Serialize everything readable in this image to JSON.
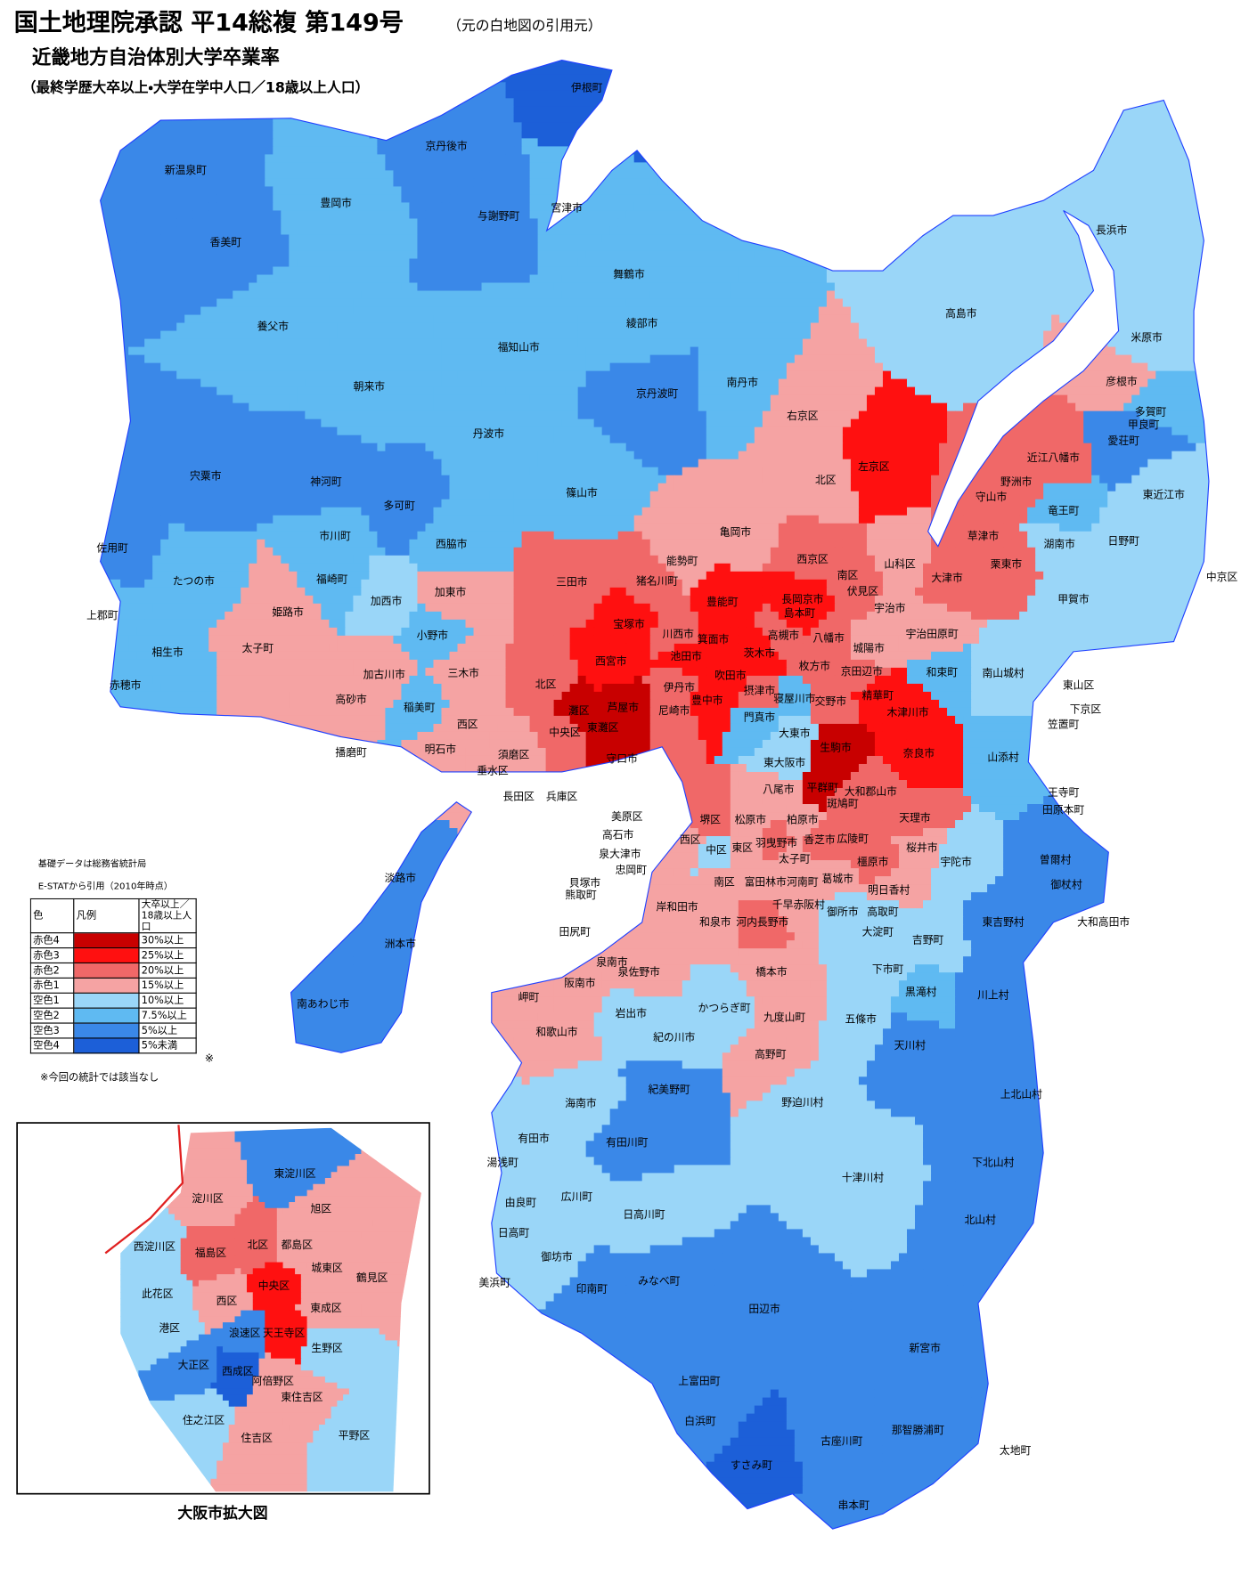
{
  "header": {
    "title": "国土地理院承認 平14総複 第149号",
    "source_note": "（元の白地図の引用元）",
    "subtitle": "近畿地方自治体別大学卒業率",
    "definition": "（最終学歴大卒以上・大学在学中人口／18歳以上人口）"
  },
  "legend": {
    "notes": [
      "基礎データは総務省統計局",
      "E-STATから引用（2010年時点）"
    ],
    "columns": [
      "色",
      "凡例",
      "大卒以上／18歳以上人口"
    ],
    "rows": [
      {
        "label": "赤色4",
        "color": "#c80000",
        "range": "30%以上"
      },
      {
        "label": "赤色3",
        "color": "#ff1010",
        "range": "25%以上"
      },
      {
        "label": "赤色2",
        "color": "#f06868",
        "range": "20%以上"
      },
      {
        "label": "赤色1",
        "color": "#f5a3a3",
        "range": "15%以上"
      },
      {
        "label": "空色1",
        "color": "#9ad6f8",
        "range": "10%以上"
      },
      {
        "label": "空色2",
        "color": "#5fbaf2",
        "range": "7.5%以上"
      },
      {
        "label": "空色3",
        "color": "#3a88e8",
        "range": "5%以上"
      },
      {
        "label": "空色4",
        "color": "#1c5fd8",
        "range": "5%未満"
      }
    ],
    "footnote_mark": "※",
    "footnote": "※今回の統計では該当なし"
  },
  "inset": {
    "title": "大阪市拡大図"
  },
  "places": [
    {
      "name": "伊根町",
      "color": "#1c5fd8"
    },
    {
      "name": "京丹後市",
      "color": "#3a88e8"
    },
    {
      "name": "新温泉町",
      "color": "#3a88e8"
    },
    {
      "name": "豊岡市",
      "color": "#5fbaf2"
    },
    {
      "name": "与謝野町",
      "color": "#3a88e8"
    },
    {
      "name": "宮津市",
      "color": "#5fbaf2"
    },
    {
      "name": "香美町",
      "color": "#3a88e8"
    },
    {
      "name": "舞鶴市",
      "color": "#5fbaf2"
    },
    {
      "name": "養父市",
      "color": "#5fbaf2"
    },
    {
      "name": "綾部市",
      "color": "#5fbaf2"
    },
    {
      "name": "福知山市",
      "color": "#5fbaf2"
    },
    {
      "name": "朝来市",
      "color": "#5fbaf2"
    },
    {
      "name": "南丹市",
      "color": "#5fbaf2"
    },
    {
      "name": "京丹波町",
      "color": "#3a88e8"
    },
    {
      "name": "丹波市",
      "color": "#5fbaf2"
    },
    {
      "name": "宍粟市",
      "color": "#3a88e8"
    },
    {
      "name": "神河町",
      "color": "#3a88e8"
    },
    {
      "name": "多可町",
      "color": "#3a88e8"
    },
    {
      "name": "篠山市",
      "color": "#5fbaf2"
    },
    {
      "name": "佐用町",
      "color": "#3a88e8"
    },
    {
      "name": "市川町",
      "color": "#5fbaf2"
    },
    {
      "name": "西脇市",
      "color": "#5fbaf2"
    },
    {
      "name": "たつの市",
      "color": "#5fbaf2"
    },
    {
      "name": "福崎町",
      "color": "#5fbaf2"
    },
    {
      "name": "加西市",
      "color": "#9ad6f8"
    },
    {
      "name": "上郡町",
      "color": "#5fbaf2"
    },
    {
      "name": "相生市",
      "color": "#5fbaf2"
    },
    {
      "name": "赤穂市",
      "color": "#5fbaf2"
    },
    {
      "name": "姫路市",
      "color": "#f5a3a3"
    },
    {
      "name": "太子町",
      "color": "#f5a3a3"
    },
    {
      "name": "加古川市",
      "color": "#f5a3a3"
    },
    {
      "name": "高砂市",
      "color": "#f5a3a3"
    },
    {
      "name": "稲美町",
      "color": "#5fbaf2"
    },
    {
      "name": "加東市",
      "color": "#f5a3a3"
    },
    {
      "name": "小野市",
      "color": "#5fbaf2"
    },
    {
      "name": "三木市",
      "color": "#f5a3a3"
    },
    {
      "name": "明石市",
      "color": "#f5a3a3"
    },
    {
      "name": "播磨町",
      "color": "#5fbaf2"
    },
    {
      "name": "西区",
      "color": "#f5a3a3"
    },
    {
      "name": "北区",
      "color": "#f06868"
    },
    {
      "name": "三田市",
      "color": "#f06868"
    },
    {
      "name": "猪名川町",
      "color": "#f06868"
    },
    {
      "name": "能勢町",
      "color": "#f5a3a3"
    },
    {
      "name": "亀岡市",
      "color": "#f5a3a3"
    },
    {
      "name": "右京区",
      "color": "#f5a3a3"
    },
    {
      "name": "北区",
      "color": "#f5a3a3"
    },
    {
      "name": "左京区",
      "color": "#ff1010"
    },
    {
      "name": "宝塚市",
      "color": "#ff1010"
    },
    {
      "name": "川西市",
      "color": "#f06868"
    },
    {
      "name": "豊能町",
      "color": "#ff1010"
    },
    {
      "name": "箕面市",
      "color": "#ff1010"
    },
    {
      "name": "池田市",
      "color": "#ff1010"
    },
    {
      "name": "茨木市",
      "color": "#ff1010"
    },
    {
      "name": "高槻市",
      "color": "#f06868"
    },
    {
      "name": "島本町",
      "color": "#ff1010"
    },
    {
      "name": "長岡京市",
      "color": "#ff1010"
    },
    {
      "name": "西宮市",
      "color": "#ff1010"
    },
    {
      "name": "伊丹市",
      "color": "#f06868"
    },
    {
      "name": "豊中市",
      "color": "#ff1010"
    },
    {
      "name": "吹田市",
      "color": "#ff1010"
    },
    {
      "name": "尼崎市",
      "color": "#f06868"
    },
    {
      "name": "芦屋市",
      "color": "#c80000"
    },
    {
      "name": "灘区",
      "color": "#c80000"
    },
    {
      "name": "東灘区",
      "color": "#c80000"
    },
    {
      "name": "中央区",
      "color": "#f06868"
    },
    {
      "name": "垂水区",
      "color": "#f5a3a3"
    },
    {
      "name": "須磨区",
      "color": "#f5a3a3"
    },
    {
      "name": "長田区",
      "color": "#9ad6f8"
    },
    {
      "name": "兵庫区",
      "color": "#9ad6f8"
    },
    {
      "name": "守口市",
      "color": "#9ad6f8"
    },
    {
      "name": "摂津市",
      "color": "#f06868"
    },
    {
      "name": "寝屋川市",
      "color": "#5fbaf2"
    },
    {
      "name": "交野市",
      "color": "#f06868"
    },
    {
      "name": "枚方市",
      "color": "#f06868"
    },
    {
      "name": "八幡市",
      "color": "#f06868"
    },
    {
      "name": "京田辺市",
      "color": "#f06868"
    },
    {
      "name": "城陽市",
      "color": "#f5a3a3"
    },
    {
      "name": "西京区",
      "color": "#f06868"
    },
    {
      "name": "南区",
      "color": "#f06868"
    },
    {
      "name": "伏見区",
      "color": "#f06868"
    },
    {
      "name": "山科区",
      "color": "#f5a3a3"
    },
    {
      "name": "宇治市",
      "color": "#f5a3a3"
    },
    {
      "name": "宇治田原町",
      "color": "#f5a3a3"
    },
    {
      "name": "精華町",
      "color": "#ff1010"
    },
    {
      "name": "木津川市",
      "color": "#ff1010"
    },
    {
      "name": "奈良市",
      "color": "#ff1010"
    },
    {
      "name": "生駒市",
      "color": "#c80000"
    },
    {
      "name": "門真市",
      "color": "#5fbaf2"
    },
    {
      "name": "大東市",
      "color": "#9ad6f8"
    },
    {
      "name": "東大阪市",
      "color": "#9ad6f8"
    },
    {
      "name": "平群町",
      "color": "#c80000"
    },
    {
      "name": "大和郡山市",
      "color": "#f06868"
    },
    {
      "name": "八尾市",
      "color": "#f5a3a3"
    },
    {
      "name": "柏原市",
      "color": "#f5a3a3"
    },
    {
      "name": "斑鳩町",
      "color": "#f06868"
    },
    {
      "name": "天理市",
      "color": "#f06868"
    },
    {
      "name": "桜井市",
      "color": "#f5a3a3"
    },
    {
      "name": "宇陀市",
      "color": "#9ad6f8"
    },
    {
      "name": "曽爾村",
      "color": "#3a88e8"
    },
    {
      "name": "御杖村",
      "color": "#3a88e8"
    },
    {
      "name": "和束町",
      "color": "#5fbaf2"
    },
    {
      "name": "南山城村",
      "color": "#9ad6f8"
    },
    {
      "name": "山添村",
      "color": "#5fbaf2"
    },
    {
      "name": "笠置町",
      "color": "#9ad6f8"
    },
    {
      "name": "王寺町",
      "color": "#f06868"
    },
    {
      "name": "田原本町",
      "color": "#f5a3a3"
    },
    {
      "name": "東山区",
      "color": "#f5a3a3"
    },
    {
      "name": "下京区",
      "color": "#f06868"
    },
    {
      "name": "中京区",
      "color": "#f06868"
    },
    {
      "name": "長浜市",
      "color": "#9ad6f8"
    },
    {
      "name": "米原市",
      "color": "#9ad6f8"
    },
    {
      "name": "高島市",
      "color": "#9ad6f8"
    },
    {
      "name": "彦根市",
      "color": "#f5a3a3"
    },
    {
      "name": "多賀町",
      "color": "#5fbaf2"
    },
    {
      "name": "甲良町",
      "color": "#3a88e8"
    },
    {
      "name": "愛荘町",
      "color": "#3a88e8"
    },
    {
      "name": "近江八幡市",
      "color": "#f06868"
    },
    {
      "name": "野洲市",
      "color": "#f06868"
    },
    {
      "name": "守山市",
      "color": "#f06868"
    },
    {
      "name": "竜王町",
      "color": "#5fbaf2"
    },
    {
      "name": "東近江市",
      "color": "#9ad6f8"
    },
    {
      "name": "草津市",
      "color": "#f06868"
    },
    {
      "name": "湖南市",
      "color": "#9ad6f8"
    },
    {
      "name": "日野町",
      "color": "#9ad6f8"
    },
    {
      "name": "栗東市",
      "color": "#f06868"
    },
    {
      "name": "大津市",
      "color": "#f06868"
    },
    {
      "name": "甲賀市",
      "color": "#9ad6f8"
    },
    {
      "name": "美原区",
      "color": "#f5a3a3"
    },
    {
      "name": "高石市",
      "color": "#f5a3a3"
    },
    {
      "name": "泉大津市",
      "color": "#f5a3a3"
    },
    {
      "name": "忠岡町",
      "color": "#f5a3a3"
    },
    {
      "name": "貝塚市",
      "color": "#9ad6f8"
    },
    {
      "name": "熊取町",
      "color": "#9ad6f8"
    },
    {
      "name": "田尻町",
      "color": "#9ad6f8"
    },
    {
      "name": "堺区",
      "color": "#f06868"
    },
    {
      "name": "松原市",
      "color": "#f5a3a3"
    },
    {
      "name": "東区",
      "color": "#f5a3a3"
    },
    {
      "name": "中区",
      "color": "#9ad6f8"
    },
    {
      "name": "西区",
      "color": "#f5a3a3"
    },
    {
      "name": "羽曳野市",
      "color": "#f06868"
    },
    {
      "name": "香芝市",
      "color": "#f06868"
    },
    {
      "name": "広陵町",
      "color": "#f06868"
    },
    {
      "name": "太子町",
      "color": "#f5a3a3"
    },
    {
      "name": "河南町",
      "color": "#f5a3a3"
    },
    {
      "name": "千早赤阪村",
      "color": "#f5a3a3"
    },
    {
      "name": "富田林市",
      "color": "#f5a3a3"
    },
    {
      "name": "葛城市",
      "color": "#f5a3a3"
    },
    {
      "name": "大和高田市",
      "color": "#f06868"
    },
    {
      "name": "橿原市",
      "color": "#f06868"
    },
    {
      "name": "明日香村",
      "color": "#f5a3a3"
    },
    {
      "name": "御所市",
      "color": "#9ad6f8"
    },
    {
      "name": "高取町",
      "color": "#9ad6f8"
    },
    {
      "name": "大淀町",
      "color": "#9ad6f8"
    },
    {
      "name": "吉野町",
      "color": "#9ad6f8"
    },
    {
      "name": "東吉野村",
      "color": "#3a88e8"
    },
    {
      "name": "南区",
      "color": "#f5a3a3"
    },
    {
      "name": "和泉市",
      "color": "#f5a3a3"
    },
    {
      "name": "河内長野市",
      "color": "#f06868"
    },
    {
      "name": "岸和田市",
      "color": "#f5a3a3"
    },
    {
      "name": "泉佐野市",
      "color": "#f5a3a3"
    },
    {
      "name": "泉南市",
      "color": "#f5a3a3"
    },
    {
      "name": "阪南市",
      "color": "#f5a3a3"
    },
    {
      "name": "岬町",
      "color": "#f5a3a3"
    },
    {
      "name": "和歌山市",
      "color": "#f5a3a3"
    },
    {
      "name": "岩出市",
      "color": "#9ad6f8"
    },
    {
      "name": "紀の川市",
      "color": "#9ad6f8"
    },
    {
      "name": "かつらぎ町",
      "color": "#9ad6f8"
    },
    {
      "name": "橋本市",
      "color": "#f5a3a3"
    },
    {
      "name": "九度山町",
      "color": "#f5a3a3"
    },
    {
      "name": "高野町",
      "color": "#f5a3a3"
    },
    {
      "name": "五條市",
      "color": "#9ad6f8"
    },
    {
      "name": "下市町",
      "color": "#9ad6f8"
    },
    {
      "name": "黒滝村",
      "color": "#5fbaf2"
    },
    {
      "name": "川上村",
      "color": "#3a88e8"
    },
    {
      "name": "天川村",
      "color": "#3a88e8"
    },
    {
      "name": "野迫川村",
      "color": "#9ad6f8"
    },
    {
      "name": "上北山村",
      "color": "#3a88e8"
    },
    {
      "name": "十津川村",
      "color": "#9ad6f8"
    },
    {
      "name": "下北山村",
      "color": "#3a88e8"
    },
    {
      "name": "北山村",
      "color": "#3a88e8"
    },
    {
      "name": "紀美野町",
      "color": "#3a88e8"
    },
    {
      "name": "海南市",
      "color": "#9ad6f8"
    },
    {
      "name": "有田市",
      "color": "#9ad6f8"
    },
    {
      "name": "有田川町",
      "color": "#3a88e8"
    },
    {
      "name": "湯浅町",
      "color": "#9ad6f8"
    },
    {
      "name": "広川町",
      "color": "#9ad6f8"
    },
    {
      "name": "由良町",
      "color": "#9ad6f8"
    },
    {
      "name": "日高川町",
      "color": "#9ad6f8"
    },
    {
      "name": "日高町",
      "color": "#9ad6f8"
    },
    {
      "name": "御坊市",
      "color": "#9ad6f8"
    },
    {
      "name": "美浜町",
      "color": "#9ad6f8"
    },
    {
      "name": "印南町",
      "color": "#3a88e8"
    },
    {
      "name": "みなべ町",
      "color": "#3a88e8"
    },
    {
      "name": "田辺市",
      "color": "#3a88e8"
    },
    {
      "name": "新宮市",
      "color": "#3a88e8"
    },
    {
      "name": "上富田町",
      "color": "#3a88e8"
    },
    {
      "name": "白浜町",
      "color": "#3a88e8"
    },
    {
      "name": "那智勝浦町",
      "color": "#3a88e8"
    },
    {
      "name": "古座川町",
      "color": "#3a88e8"
    },
    {
      "name": "太地町",
      "color": "#3a88e8"
    },
    {
      "name": "すさみ町",
      "color": "#1c5fd8"
    },
    {
      "name": "串本町",
      "color": "#3a88e8"
    },
    {
      "name": "淡路市",
      "color": "#3a88e8"
    },
    {
      "name": "洲本市",
      "color": "#3a88e8"
    },
    {
      "name": "南あわじ市",
      "color": "#3a88e8"
    },
    {
      "name": "東淀川区",
      "color": "#3a88e8"
    },
    {
      "name": "淀川区",
      "color": "#f5a3a3"
    },
    {
      "name": "旭区",
      "color": "#f5a3a3"
    },
    {
      "name": "北区",
      "color": "#f06868"
    },
    {
      "name": "都島区",
      "color": "#f5a3a3"
    },
    {
      "name": "福島区",
      "color": "#f06868"
    },
    {
      "name": "西淀川区",
      "color": "#9ad6f8"
    },
    {
      "name": "鶴見区",
      "color": "#f5a3a3"
    },
    {
      "name": "城東区",
      "color": "#f5a3a3"
    },
    {
      "name": "中央区",
      "color": "#ff1010"
    },
    {
      "name": "此花区",
      "color": "#9ad6f8"
    },
    {
      "name": "西区",
      "color": "#f5a3a3"
    },
    {
      "name": "東成区",
      "color": "#f5a3a3"
    },
    {
      "name": "港区",
      "color": "#9ad6f8"
    },
    {
      "name": "浪速区",
      "color": "#3a88e8"
    },
    {
      "name": "天王寺区",
      "color": "#ff1010"
    },
    {
      "name": "生野区",
      "color": "#9ad6f8"
    },
    {
      "name": "大正区",
      "color": "#3a88e8"
    },
    {
      "name": "西成区",
      "color": "#1c5fd8"
    },
    {
      "name": "阿倍野区",
      "color": "#f5a3a3"
    },
    {
      "name": "東住吉区",
      "color": "#f5a3a3"
    },
    {
      "name": "住之江区",
      "color": "#9ad6f8"
    },
    {
      "name": "住吉区",
      "color": "#f5a3a3"
    },
    {
      "name": "平野区",
      "color": "#9ad6f8"
    }
  ]
}
